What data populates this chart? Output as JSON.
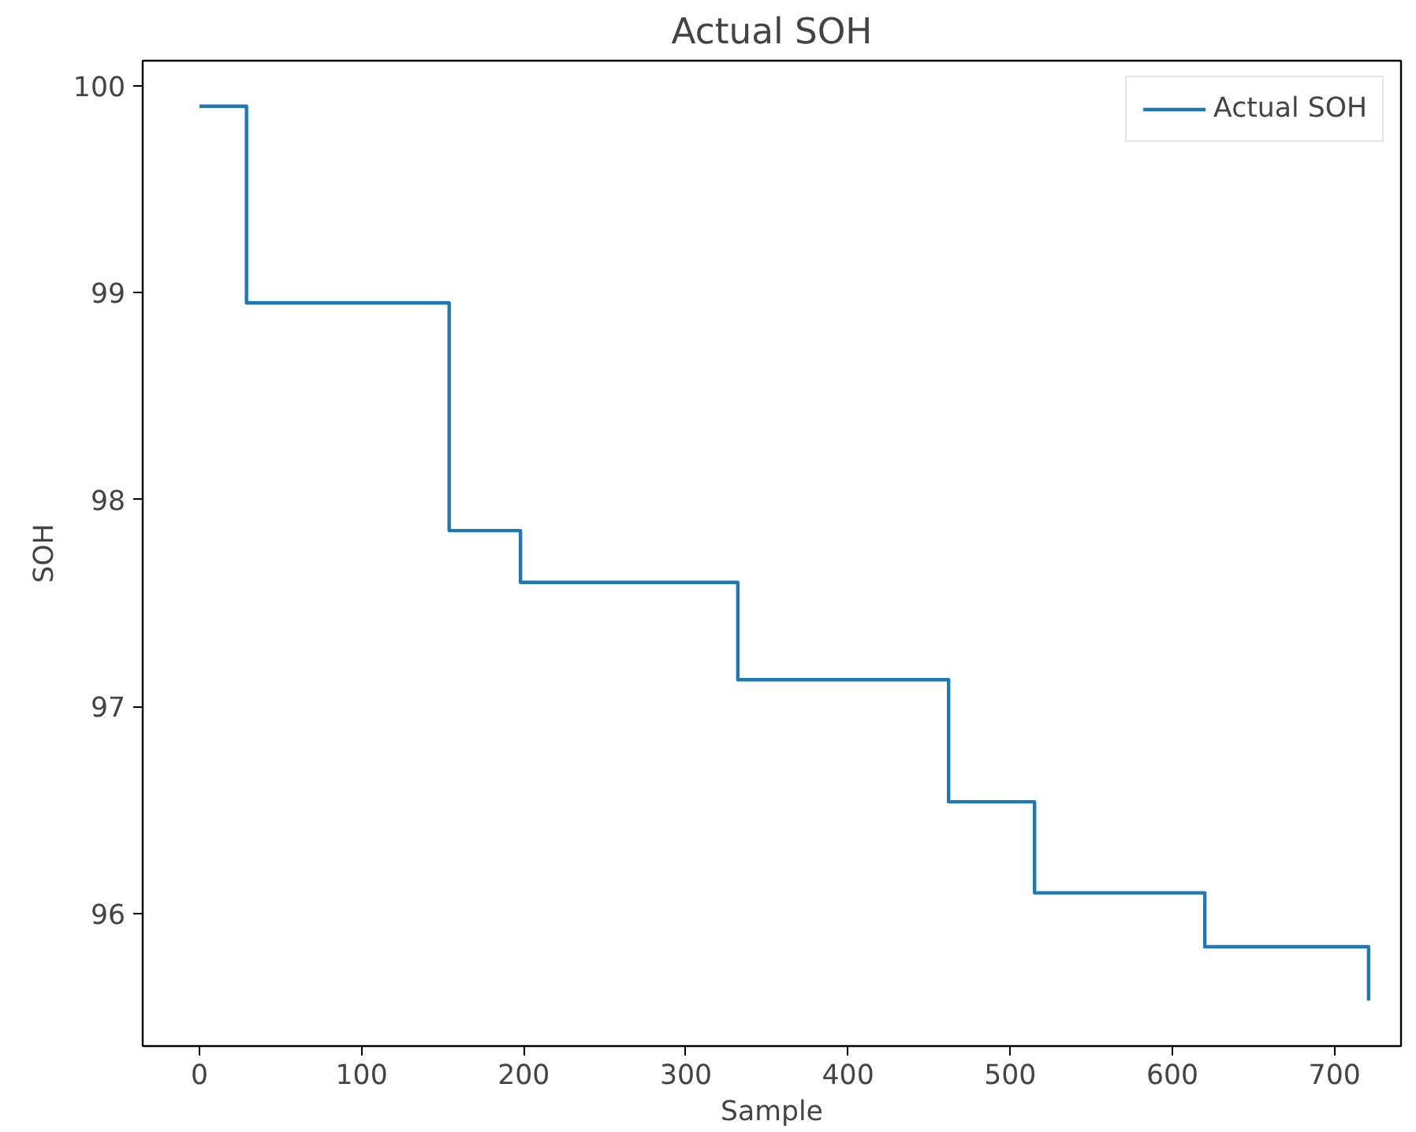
{
  "chart_data": {
    "type": "step",
    "title": "Actual SOH",
    "xlabel": "Sample",
    "ylabel": "SOH",
    "x": [
      0,
      29,
      154,
      198,
      332,
      462,
      515,
      620,
      721
    ],
    "series": [
      {
        "name": "Actual SOH",
        "color": "#1f77b4",
        "values": [
          99.9,
          98.95,
          97.85,
          97.6,
          97.13,
          96.54,
          96.1,
          95.84,
          95.58
        ]
      }
    ],
    "xlim": [
      -35,
      741
    ],
    "ylim": [
      95.36,
      100.12
    ],
    "xticks": [
      0,
      100,
      200,
      300,
      400,
      500,
      600,
      700
    ],
    "yticks": [
      96,
      97,
      98,
      99,
      100
    ],
    "legend": "top right"
  }
}
